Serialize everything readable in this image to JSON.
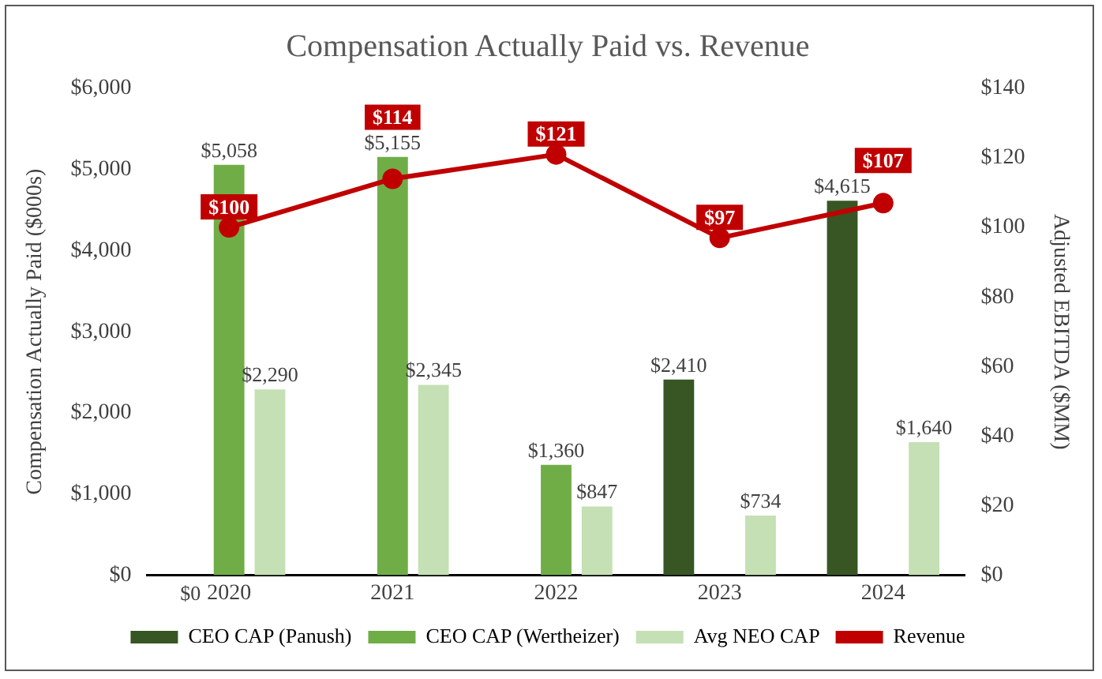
{
  "chart_data": {
    "type": "bar",
    "title": "Compensation Actually Paid vs. Revenue",
    "ylabel": "Compensation Actually Paid ($000s)",
    "y2label": "Adjusted EBITDA ($MM)",
    "categories": [
      "2020",
      "2021",
      "2022",
      "2023",
      "2024"
    ],
    "series": [
      {
        "name": "CEO CAP (Panush)",
        "color": "#375623",
        "values": [
          0,
          null,
          null,
          2410,
          4615
        ],
        "value_labels": [
          null,
          null,
          null,
          "$2,410",
          "$4,615"
        ]
      },
      {
        "name": "CEO CAP (Wertheizer)",
        "color": "#70ad47",
        "values": [
          5058,
          5155,
          1360,
          null,
          null
        ],
        "value_labels": [
          "$5,058",
          "$5,155",
          "$1,360",
          null,
          null
        ]
      },
      {
        "name": "Avg NEO CAP",
        "color": "#c5e0b4",
        "values": [
          2290,
          2345,
          847,
          734,
          1640
        ],
        "value_labels": [
          "$2,290",
          "$2,345",
          "$847",
          "$734",
          "$1,640"
        ]
      },
      {
        "name": "Revenue",
        "type": "line",
        "axis": "y2",
        "color": "#c00000",
        "marker": "circle",
        "values": [
          100,
          114,
          121,
          97,
          107
        ],
        "value_labels": [
          "$100",
          "$114",
          "$121",
          "$97",
          "$107"
        ]
      }
    ],
    "ylim": [
      0,
      6000
    ],
    "yticks": [
      {
        "value": 0,
        "label": "$0"
      },
      {
        "value": 1000,
        "label": "$1,000"
      },
      {
        "value": 2000,
        "label": "$2,000"
      },
      {
        "value": 3000,
        "label": "$3,000"
      },
      {
        "value": 4000,
        "label": "$4,000"
      },
      {
        "value": 5000,
        "label": "$5,000"
      },
      {
        "value": 6000,
        "label": "$6,000"
      }
    ],
    "y2lim": [
      0,
      140
    ],
    "y2ticks": [
      {
        "value": 0,
        "label": "$0"
      },
      {
        "value": 20,
        "label": "$20"
      },
      {
        "value": 40,
        "label": "$40"
      },
      {
        "value": 60,
        "label": "$60"
      },
      {
        "value": 80,
        "label": "$80"
      },
      {
        "value": 100,
        "label": "$100"
      },
      {
        "value": 120,
        "label": "$120"
      },
      {
        "value": 140,
        "label": "$140"
      }
    ],
    "annotations": [
      {
        "text": "$0",
        "x": "2020",
        "y": 0
      }
    ],
    "grid": false,
    "legend": "bottom"
  }
}
